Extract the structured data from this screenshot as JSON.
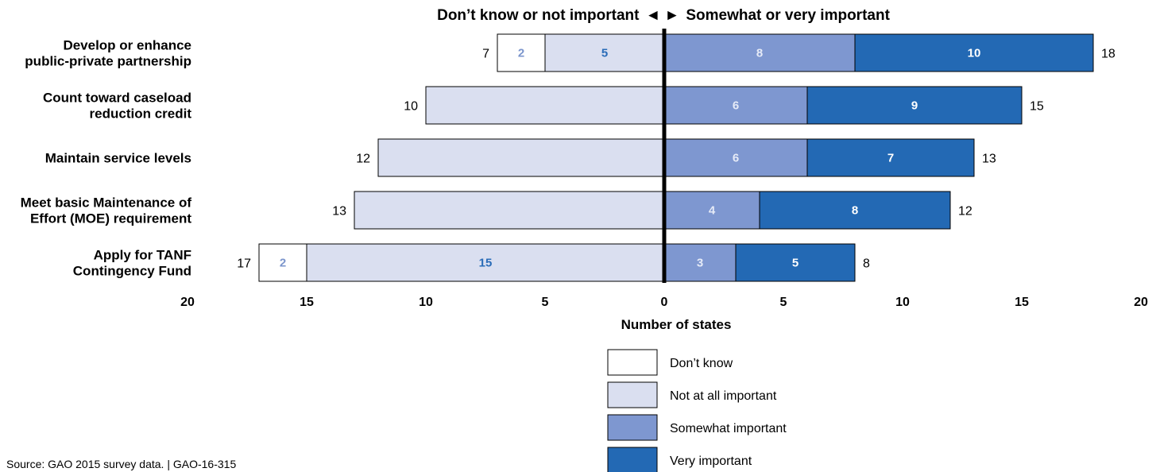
{
  "chart_data": {
    "type": "bar",
    "orientation": "horizontal-diverging",
    "header": {
      "left": "Don’t know or not important",
      "arrows": "◄ ►",
      "right": "Somewhat or very important"
    },
    "categories": [
      [
        "Develop or enhance",
        "public-private partnership"
      ],
      [
        "Count toward caseload",
        "reduction credit"
      ],
      [
        "Maintain service levels"
      ],
      [
        "Meet basic Maintenance of",
        "Effort (MOE) requirement"
      ],
      [
        "Apply for TANF",
        "Contingency Fund"
      ]
    ],
    "series": [
      {
        "name": "Don’t know",
        "side": "negative",
        "color": "#ffffff",
        "label_color": "#7b95cc",
        "values": [
          2,
          0,
          0,
          0,
          2
        ]
      },
      {
        "name": "Not at all important",
        "side": "negative",
        "color": "#dadff0",
        "label_color": "#2a6cb8",
        "values": [
          5,
          10,
          12,
          13,
          15
        ]
      },
      {
        "name": "Somewhat important",
        "side": "positive",
        "color": "#7e97d0",
        "label_color": "#e6ebf7",
        "values": [
          8,
          6,
          6,
          4,
          3
        ]
      },
      {
        "name": "Very important",
        "side": "positive",
        "color": "#2369b4",
        "label_color": "#ffffff",
        "values": [
          10,
          9,
          7,
          8,
          5
        ]
      }
    ],
    "segment_labels_shown": [
      [
        true,
        true,
        true,
        true
      ],
      [
        false,
        false,
        true,
        true
      ],
      [
        false,
        false,
        true,
        true
      ],
      [
        false,
        false,
        true,
        true
      ],
      [
        true,
        true,
        true,
        true
      ]
    ],
    "totals_negative": [
      7,
      10,
      12,
      13,
      17
    ],
    "totals_positive": [
      18,
      15,
      13,
      12,
      8
    ],
    "xlim": [
      -20,
      20
    ],
    "xticks": [
      {
        "value": -20,
        "label": "20"
      },
      {
        "value": -15,
        "label": "15"
      },
      {
        "value": -10,
        "label": "10"
      },
      {
        "value": -5,
        "label": "5"
      },
      {
        "value": 0,
        "label": "0"
      },
      {
        "value": 5,
        "label": "5"
      },
      {
        "value": 10,
        "label": "10"
      },
      {
        "value": 15,
        "label": "15"
      },
      {
        "value": 20,
        "label": "20"
      }
    ],
    "xlabel": "Number of states",
    "grid": false,
    "legend_placement": "bottom-center"
  },
  "source": "Source: GAO 2015 survey data.  |  GAO-16-315"
}
